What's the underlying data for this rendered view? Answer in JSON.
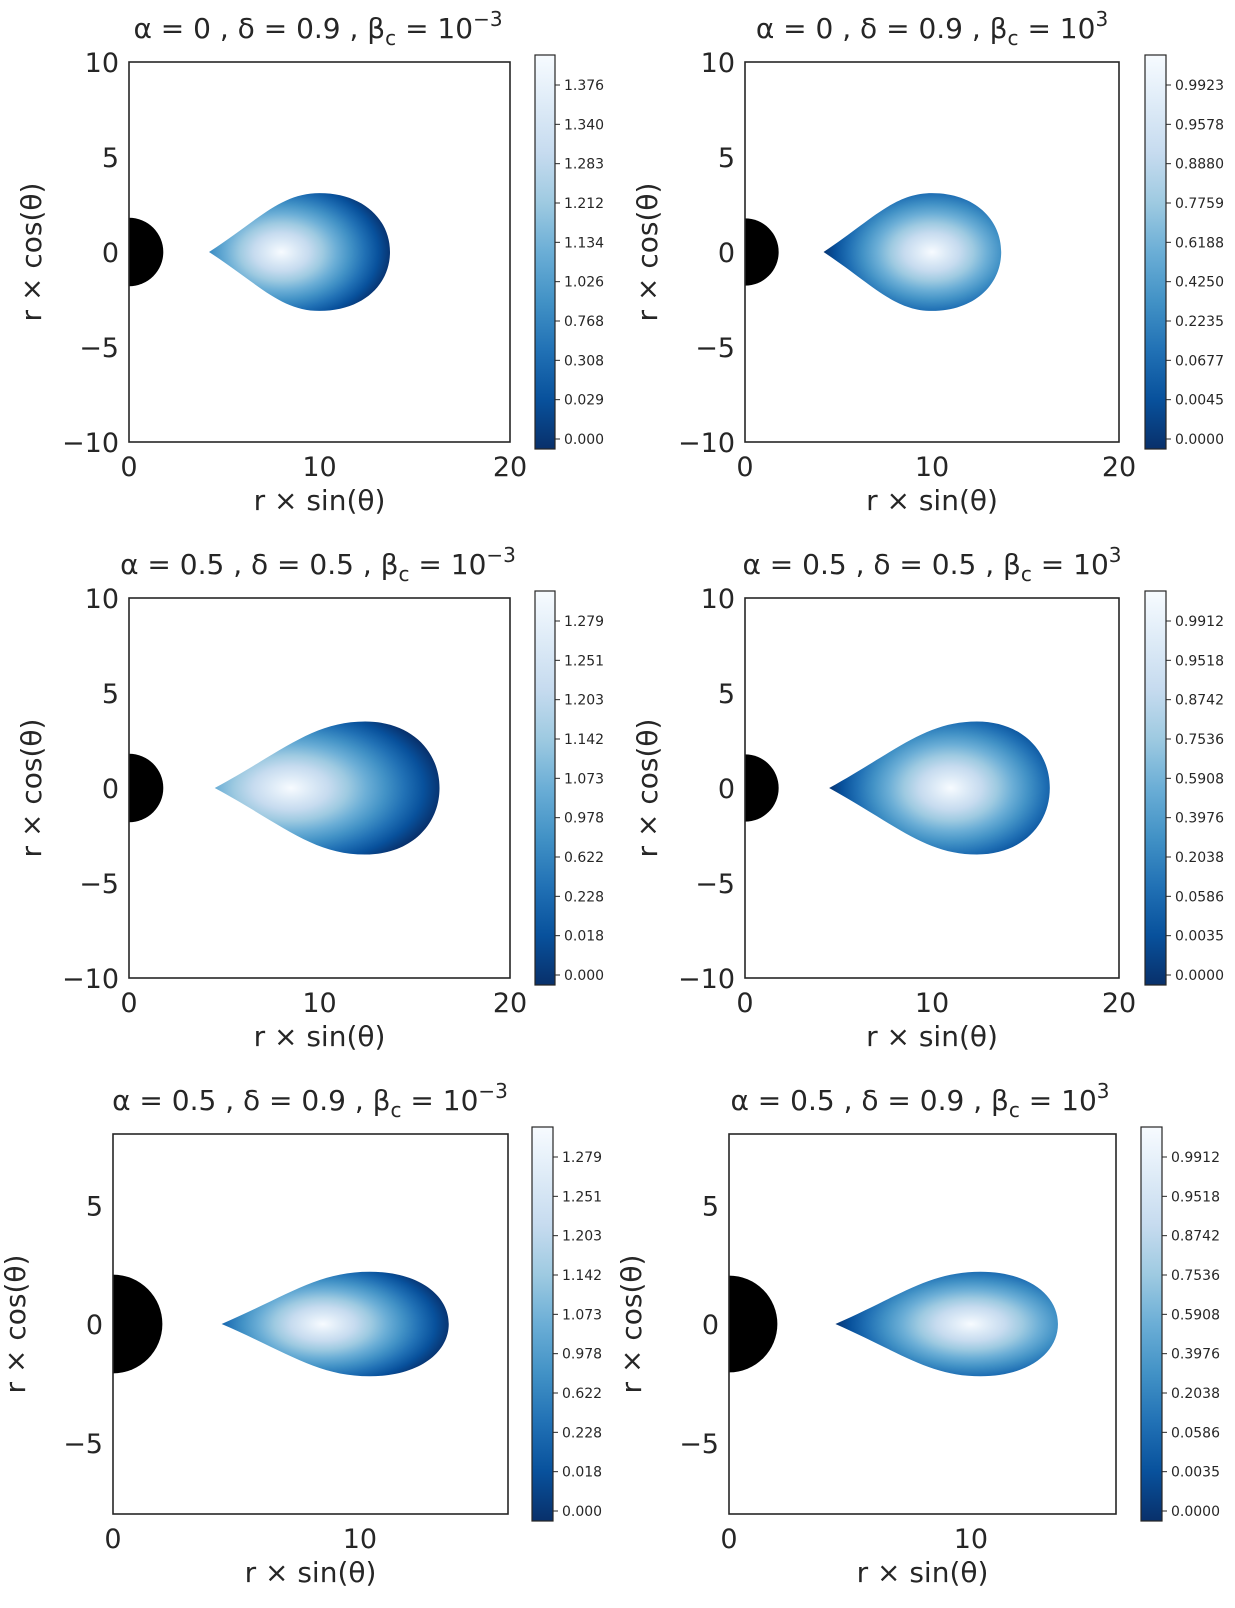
{
  "figure": {
    "layout": "3x2 grid of torus-density panels",
    "colormap": "Blues_r (dark navy at 0, white at max)",
    "background": "#ffffff",
    "black_hole_color": "#000000",
    "colormap_stops": [
      "#08306b",
      "#08519c",
      "#2171b5",
      "#4292c6",
      "#6baed6",
      "#9ecae1",
      "#c6dbef",
      "#deebf7",
      "#f7fbff"
    ]
  },
  "chart_data": [
    {
      "id": "p1",
      "type": "heatmap",
      "title": "α = 0 , δ = 0.9 , βc = 10⁻³",
      "title_parts": {
        "alpha": "0",
        "delta": "0.9",
        "beta_base": "10",
        "beta_exp": "−3"
      },
      "xlabel": "r × sin(θ)",
      "ylabel": "r × cos(θ)",
      "xlim": [
        0,
        20
      ],
      "ylim": [
        -10,
        10
      ],
      "xticks": [
        "0",
        "10",
        "20"
      ],
      "yticks": [
        "−10",
        "−5",
        "0",
        "5",
        "10"
      ],
      "xtick_values": [
        0,
        10,
        20
      ],
      "ytick_values": [
        -10,
        -5,
        0,
        5,
        10
      ],
      "black_hole_radius": 1.8,
      "torus": {
        "r_in": 4.2,
        "r_out": 13.7,
        "r_center": 10.0,
        "half_height": 3.1,
        "peak_x": 8.0
      },
      "colorbar_ticks": [
        "0.000",
        "0.029",
        "0.308",
        "0.768",
        "1.026",
        "1.134",
        "1.212",
        "1.283",
        "1.340",
        "1.376"
      ]
    },
    {
      "id": "p2",
      "type": "heatmap",
      "title": "α = 0 , δ = 0.9 , βc = 10³",
      "title_parts": {
        "alpha": "0",
        "delta": "0.9",
        "beta_base": "10",
        "beta_exp": "3"
      },
      "xlabel": "r × sin(θ)",
      "ylabel": "r × cos(θ)",
      "xlim": [
        0,
        20
      ],
      "ylim": [
        -10,
        10
      ],
      "xticks": [
        "0",
        "10",
        "20"
      ],
      "yticks": [
        "−10",
        "−5",
        "0",
        "5",
        "10"
      ],
      "xtick_values": [
        0,
        10,
        20
      ],
      "ytick_values": [
        -10,
        -5,
        0,
        5,
        10
      ],
      "black_hole_radius": 1.8,
      "torus": {
        "r_in": 4.2,
        "r_out": 13.7,
        "r_center": 10.0,
        "half_height": 3.1,
        "peak_x": 10.0
      },
      "colorbar_ticks": [
        "0.0000",
        "0.0045",
        "0.0677",
        "0.2235",
        "0.4250",
        "0.6188",
        "0.7759",
        "0.8880",
        "0.9578",
        "0.9923"
      ]
    },
    {
      "id": "p3",
      "type": "heatmap",
      "title": "α = 0.5 , δ = 0.5 , βc = 10⁻³",
      "title_parts": {
        "alpha": "0.5",
        "delta": "0.5",
        "beta_base": "10",
        "beta_exp": "−3"
      },
      "xlabel": "r × sin(θ)",
      "ylabel": "r × cos(θ)",
      "xlim": [
        0,
        20
      ],
      "ylim": [
        -10,
        10
      ],
      "xticks": [
        "0",
        "10",
        "20"
      ],
      "yticks": [
        "−10",
        "−5",
        "0",
        "5",
        "10"
      ],
      "xtick_values": [
        0,
        10,
        20
      ],
      "ytick_values": [
        -10,
        -5,
        0,
        5,
        10
      ],
      "black_hole_radius": 1.8,
      "torus": {
        "r_in": 4.5,
        "r_out": 16.3,
        "r_center": 12.4,
        "half_height": 3.5,
        "peak_x": 8.5
      },
      "colorbar_ticks": [
        "0.000",
        "0.018",
        "0.228",
        "0.622",
        "0.978",
        "1.073",
        "1.142",
        "1.203",
        "1.251",
        "1.279"
      ]
    },
    {
      "id": "p4",
      "type": "heatmap",
      "title": "α = 0.5 , δ = 0.5 , βc = 10³",
      "title_parts": {
        "alpha": "0.5",
        "delta": "0.5",
        "beta_base": "10",
        "beta_exp": "3"
      },
      "xlabel": "r × sin(θ)",
      "ylabel": "r × cos(θ)",
      "xlim": [
        0,
        20
      ],
      "ylim": [
        -10,
        10
      ],
      "xticks": [
        "0",
        "10",
        "20"
      ],
      "yticks": [
        "−10",
        "−5",
        "0",
        "5",
        "10"
      ],
      "xtick_values": [
        0,
        10,
        20
      ],
      "ytick_values": [
        -10,
        -5,
        0,
        5,
        10
      ],
      "black_hole_radius": 1.8,
      "torus": {
        "r_in": 4.5,
        "r_out": 16.3,
        "r_center": 12.4,
        "half_height": 3.5,
        "peak_x": 11.0
      },
      "colorbar_ticks": [
        "0.0000",
        "0.0035",
        "0.0586",
        "0.2038",
        "0.3976",
        "0.5908",
        "0.7536",
        "0.8742",
        "0.9518",
        "0.9912"
      ]
    },
    {
      "id": "p5",
      "type": "heatmap",
      "title": "α = 0.5 , δ = 0.9 , βc = 10⁻³",
      "title_parts": {
        "alpha": "0.5",
        "delta": "0.9",
        "beta_base": "10",
        "beta_exp": "−3"
      },
      "xlabel": "r × sin(θ)",
      "ylabel": "r × cos(θ)",
      "xlim": [
        0,
        16
      ],
      "ylim": [
        -8,
        8
      ],
      "xticks": [
        "0",
        "10"
      ],
      "yticks": [
        "−5",
        "0",
        "5"
      ],
      "xtick_values": [
        0,
        10
      ],
      "ytick_values": [
        -5,
        0,
        5
      ],
      "black_hole_radius": 2.0,
      "torus": {
        "r_in": 4.4,
        "r_out": 13.6,
        "r_center": 10.4,
        "half_height": 2.2,
        "peak_x": 8.5
      },
      "colorbar_ticks": [
        "0.000",
        "0.018",
        "0.228",
        "0.622",
        "0.978",
        "1.073",
        "1.142",
        "1.203",
        "1.251",
        "1.279"
      ]
    },
    {
      "id": "p6",
      "type": "heatmap",
      "title": "α = 0.5 , δ = 0.9 , βc = 10³",
      "title_parts": {
        "alpha": "0.5",
        "delta": "0.9",
        "beta_base": "10",
        "beta_exp": "3"
      },
      "xlabel": "r × sin(θ)",
      "ylabel": "r × cos(θ)",
      "xlim": [
        0,
        16
      ],
      "ylim": [
        -8,
        8
      ],
      "xticks": [
        "0",
        "10"
      ],
      "yticks": [
        "−5",
        "0",
        "5"
      ],
      "xtick_values": [
        0,
        10
      ],
      "ytick_values": [
        -5,
        0,
        5
      ],
      "black_hole_radius": 2.0,
      "torus": {
        "r_in": 4.4,
        "r_out": 13.6,
        "r_center": 10.4,
        "half_height": 2.2,
        "peak_x": 10.0
      },
      "colorbar_ticks": [
        "0.0000",
        "0.0035",
        "0.0586",
        "0.2038",
        "0.3976",
        "0.5908",
        "0.7536",
        "0.8742",
        "0.9518",
        "0.9912"
      ]
    }
  ]
}
